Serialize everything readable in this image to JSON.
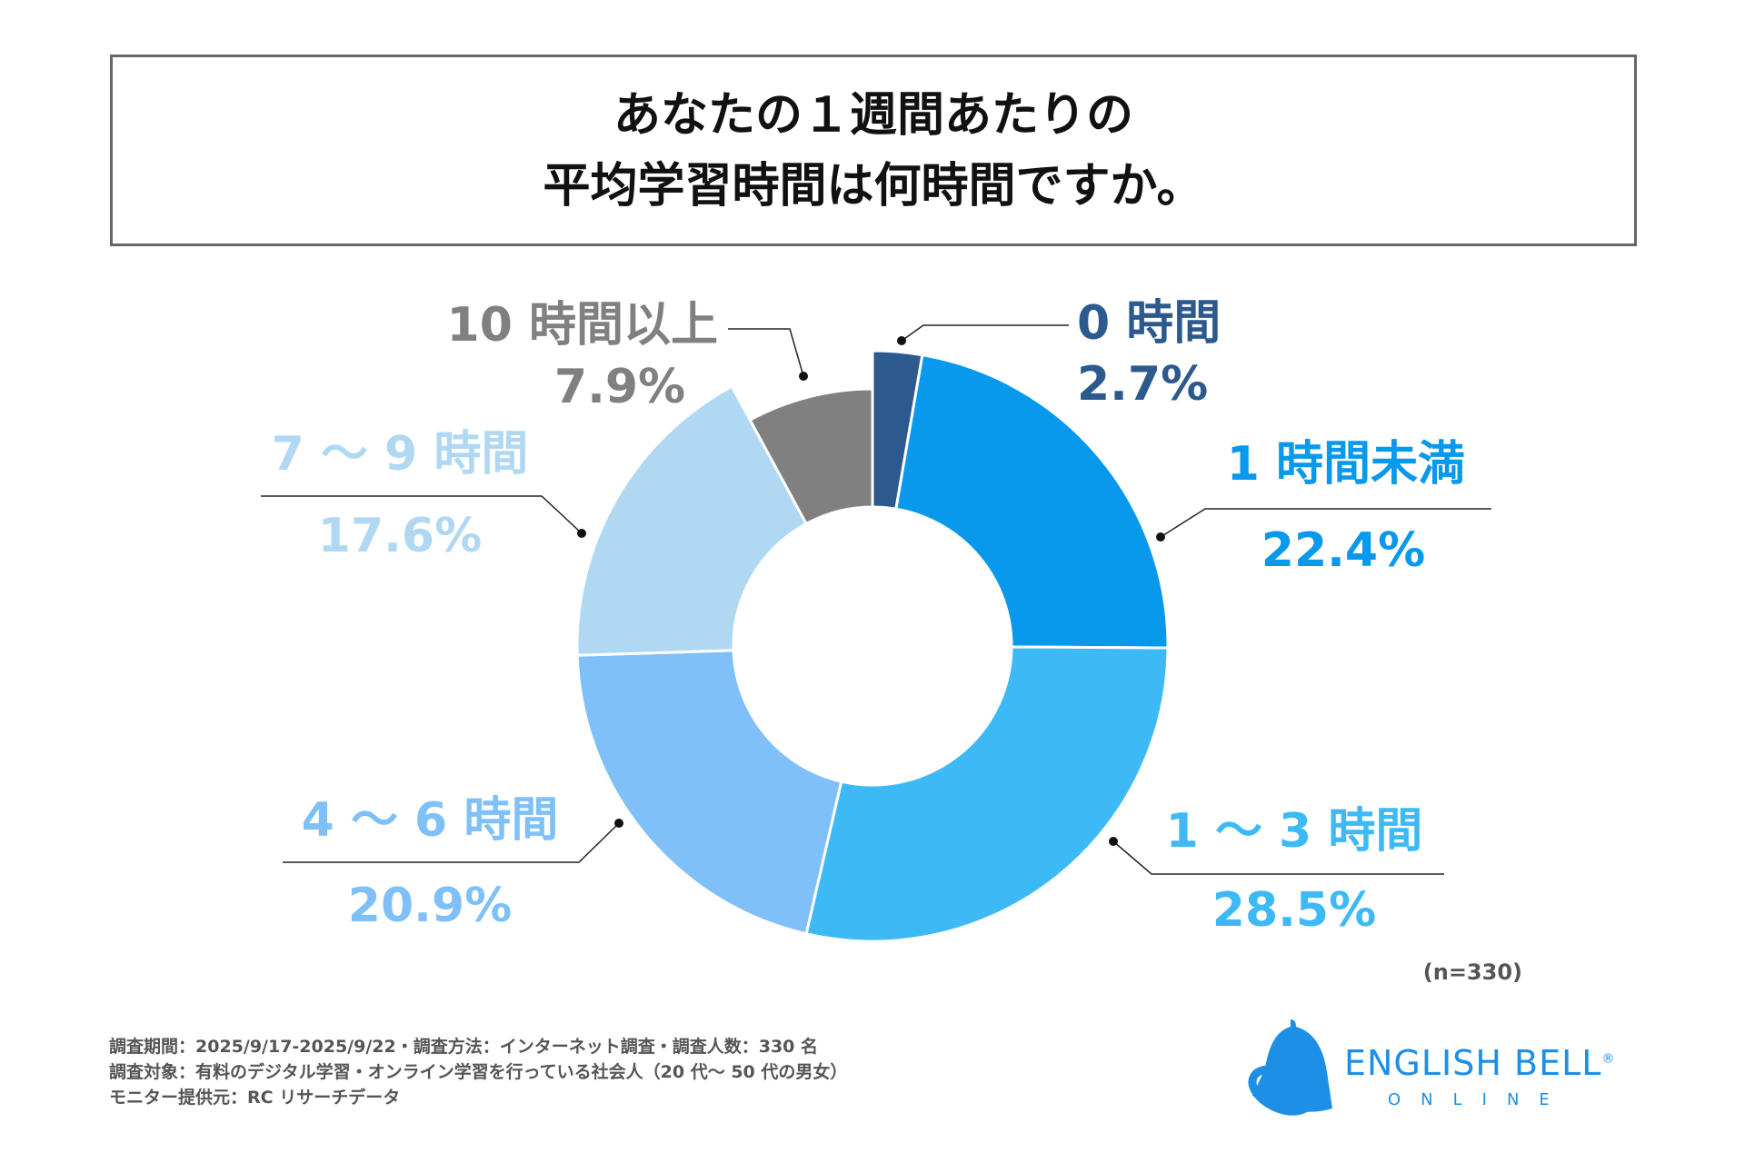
{
  "chart_data": {
    "type": "donut",
    "title": [
      "あなたの１週間あたりの",
      "平均学習時間は何時間ですか。"
    ],
    "categories": [
      "0 時間",
      "1 時間未満",
      "1 ～ 3 時間",
      "4 ～ 6 時間",
      "7 ～ 9 時間",
      "10 時間以上"
    ],
    "values": [
      2.7,
      22.4,
      28.5,
      20.9,
      17.6,
      7.9
    ],
    "value_labels": [
      "2.7%",
      "22.4%",
      "28.5%",
      "20.9%",
      "17.6%",
      "7.9%"
    ],
    "colors": [
      "#2d5a8e",
      "#0898ec",
      "#3dbaf5",
      "#80c0f8",
      "#b0d8f3",
      "#808080"
    ],
    "unit": "%",
    "sample_note": "(n=330)"
  },
  "footer": {
    "lines": [
      "調査期間：2025/9/17-2025/9/22・調査方法：インターネット調査・調査人数：330 名",
      "調査対象：有料のデジタル学習・オンライン学習を行っている社会人（20 代～ 50 代の男女）",
      "モニター提供元：RC リサーチデータ"
    ]
  },
  "logo": {
    "name": "ENGLISH BELL",
    "mark": "®",
    "sub": "ONLINE"
  }
}
